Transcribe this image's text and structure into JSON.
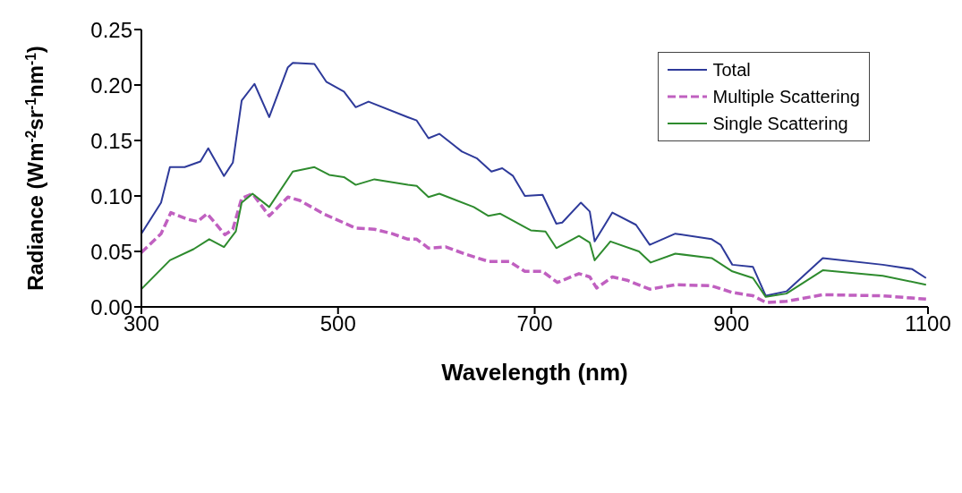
{
  "chart_data": {
    "type": "line",
    "xlabel": "Wavelength (nm)",
    "ylabel": "Radiance (Wm$^{-2}$sr$^{-1}$nm$^{-1}$)",
    "xlim": [
      300,
      1100
    ],
    "xticks": [
      300,
      500,
      700,
      900,
      1100
    ],
    "ylim": [
      0,
      0.25
    ],
    "yticks": [
      {
        "value": 0,
        "label": "0.00"
      },
      {
        "value": 0.05,
        "label": "0.05"
      },
      {
        "value": 0.1,
        "label": "0.10"
      },
      {
        "value": 0.15,
        "label": "0.15"
      },
      {
        "value": 0.2,
        "label": "0.20"
      },
      {
        "value": 0.25,
        "label": "0.25"
      }
    ],
    "grid": false,
    "legend": "top right",
    "marker": "none",
    "series": [
      {
        "name": "Total",
        "color": "#2e3a9a",
        "line_style": "solid",
        "x": [
          300,
          320,
          329,
          344,
          360,
          368,
          384,
          393,
          402,
          415,
          430,
          449,
          454,
          476,
          488,
          506,
          518,
          531,
          571,
          580,
          592,
          603,
          626,
          641,
          656,
          667,
          678,
          690,
          708,
          722,
          728,
          747,
          756,
          761,
          779,
          803,
          817,
          843,
          880,
          889,
          901,
          922,
          935,
          956,
          993,
          1054,
          1084,
          1098
        ],
        "values": [
          0.066,
          0.094,
          0.126,
          0.126,
          0.131,
          0.143,
          0.118,
          0.13,
          0.186,
          0.201,
          0.171,
          0.216,
          0.22,
          0.219,
          0.203,
          0.194,
          0.18,
          0.185,
          0.171,
          0.168,
          0.152,
          0.156,
          0.14,
          0.134,
          0.122,
          0.125,
          0.118,
          0.1,
          0.101,
          0.075,
          0.076,
          0.094,
          0.086,
          0.059,
          0.085,
          0.074,
          0.056,
          0.066,
          0.061,
          0.056,
          0.038,
          0.036,
          0.01,
          0.014,
          0.044,
          0.038,
          0.034,
          0.026
        ]
      },
      {
        "name": "Multiple Scattering",
        "color": "#c060c0",
        "line_style": "dashed",
        "x": [
          300,
          320,
          330,
          347,
          357,
          367,
          385,
          393,
          402,
          413,
          430,
          449,
          461,
          485,
          518,
          537,
          555,
          571,
          580,
          592,
          610,
          628,
          653,
          674,
          690,
          708,
          723,
          745,
          756,
          763,
          779,
          794,
          817,
          843,
          880,
          901,
          922,
          935,
          956,
          993,
          1054,
          1098
        ],
        "values": [
          0.049,
          0.066,
          0.085,
          0.079,
          0.077,
          0.084,
          0.065,
          0.07,
          0.098,
          0.102,
          0.082,
          0.099,
          0.096,
          0.084,
          0.071,
          0.07,
          0.066,
          0.061,
          0.061,
          0.053,
          0.054,
          0.048,
          0.041,
          0.041,
          0.032,
          0.032,
          0.022,
          0.03,
          0.027,
          0.017,
          0.027,
          0.024,
          0.016,
          0.02,
          0.019,
          0.013,
          0.01,
          0.004,
          0.005,
          0.011,
          0.01,
          0.007
        ]
      },
      {
        "name": "Single Scattering",
        "color": "#2e8b2e",
        "line_style": "solid",
        "x": [
          300,
          329,
          353,
          369,
          384,
          396,
          402,
          413,
          430,
          454,
          476,
          491,
          506,
          518,
          537,
          571,
          580,
          592,
          603,
          638,
          653,
          665,
          696,
          711,
          722,
          745,
          756,
          761,
          777,
          806,
          818,
          843,
          880,
          901,
          922,
          935,
          956,
          993,
          1054,
          1098
        ],
        "values": [
          0.016,
          0.042,
          0.052,
          0.061,
          0.054,
          0.068,
          0.094,
          0.102,
          0.09,
          0.122,
          0.126,
          0.119,
          0.117,
          0.11,
          0.115,
          0.11,
          0.109,
          0.099,
          0.102,
          0.09,
          0.082,
          0.084,
          0.069,
          0.068,
          0.053,
          0.064,
          0.058,
          0.042,
          0.059,
          0.05,
          0.04,
          0.048,
          0.044,
          0.032,
          0.026,
          0.009,
          0.012,
          0.033,
          0.028,
          0.02
        ]
      }
    ]
  }
}
